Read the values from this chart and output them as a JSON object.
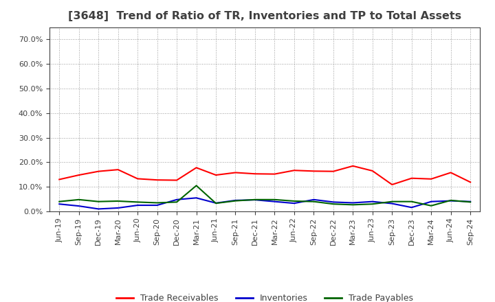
{
  "title": "[3648]  Trend of Ratio of TR, Inventories and TP to Total Assets",
  "labels": [
    "Jun-19",
    "Sep-19",
    "Dec-19",
    "Mar-20",
    "Jun-20",
    "Sep-20",
    "Dec-20",
    "Mar-21",
    "Jun-21",
    "Sep-21",
    "Dec-21",
    "Mar-22",
    "Jun-22",
    "Sep-22",
    "Dec-22",
    "Mar-23",
    "Jun-23",
    "Sep-23",
    "Dec-23",
    "Mar-24",
    "Jun-24",
    "Sep-24"
  ],
  "trade_receivables": [
    0.13,
    0.148,
    0.163,
    0.17,
    0.133,
    0.128,
    0.127,
    0.178,
    0.148,
    0.158,
    0.153,
    0.152,
    0.167,
    0.164,
    0.163,
    0.185,
    0.165,
    0.109,
    0.135,
    0.132,
    0.158,
    0.119
  ],
  "inventories": [
    0.03,
    0.022,
    0.01,
    0.014,
    0.025,
    0.025,
    0.048,
    0.055,
    0.034,
    0.045,
    0.047,
    0.04,
    0.033,
    0.048,
    0.038,
    0.035,
    0.04,
    0.032,
    0.016,
    0.04,
    0.043,
    0.04
  ],
  "trade_payables": [
    0.04,
    0.048,
    0.04,
    0.042,
    0.038,
    0.035,
    0.038,
    0.105,
    0.033,
    0.043,
    0.048,
    0.048,
    0.042,
    0.04,
    0.03,
    0.027,
    0.03,
    0.04,
    0.04,
    0.023,
    0.045,
    0.038
  ],
  "tr_color": "#FF0000",
  "inv_color": "#0000CD",
  "tp_color": "#006400",
  "background_color": "#FFFFFF",
  "plot_bg_color": "#FFFFFF",
  "grid_color": "#999999",
  "spine_color": "#404040",
  "text_color": "#404040",
  "ylim": [
    0.0,
    0.75
  ],
  "yticks": [
    0.0,
    0.1,
    0.2,
    0.3,
    0.4,
    0.5,
    0.6,
    0.7
  ],
  "legend_labels": [
    "Trade Receivables",
    "Inventories",
    "Trade Payables"
  ],
  "title_fontsize": 11.5,
  "tick_fontsize": 8,
  "legend_fontsize": 9
}
